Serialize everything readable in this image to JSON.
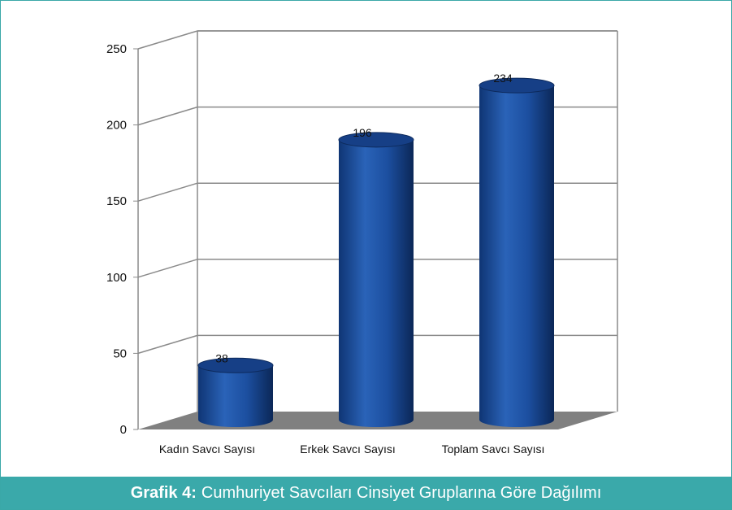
{
  "chart_data": {
    "type": "bar",
    "style": "3d-cylinder",
    "categories": [
      "Kadın Savcı Sayısı",
      "Erkek Savcı Sayısı",
      "Toplam Savcı Sayısı"
    ],
    "values": [
      38,
      196,
      234
    ],
    "data_labels": [
      "38",
      "196",
      "234"
    ],
    "ylim": [
      0,
      250
    ],
    "yticks": [
      "0",
      "50",
      "100",
      "150",
      "200",
      "250"
    ],
    "grid": true,
    "legend": "none",
    "colors": {
      "bar": "#1c4fa0",
      "floor": "#808080",
      "grid": "#8a8a8a"
    }
  },
  "caption": {
    "label": "Grafik 4:",
    "text": "Cumhuriyet Savcıları Cinsiyet Gruplarına Göre Dağılımı",
    "background": "#3aa9aa"
  }
}
